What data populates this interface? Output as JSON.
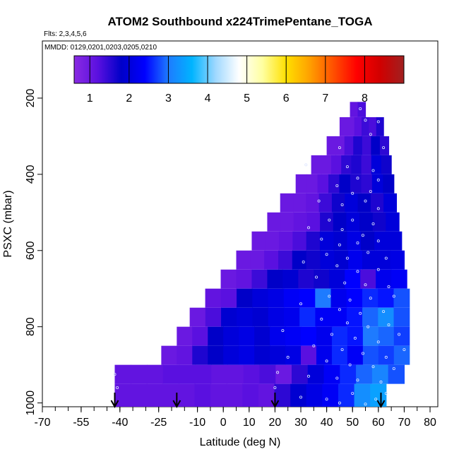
{
  "chart_data": {
    "type": "heatmap",
    "title": "ATOM2 Southbound x224TrimePentane_TOGA",
    "flights_label": "Flts: 2,3,4,5,6",
    "dates_label": "MMDD: 0129,0201,0203,0205,0210",
    "xlabel": "Latitude (deg N)",
    "ylabel": "PSXC (mbar)",
    "xlim": [
      -70,
      83
    ],
    "ylim": [
      1010,
      50
    ],
    "y_inverted": true,
    "x_ticks": [
      "-70",
      "-55",
      "-40",
      "-25",
      "-10",
      "0",
      "10",
      "20",
      "30",
      "40",
      "50",
      "60",
      "70",
      "80"
    ],
    "x_tick_values": [
      -70,
      -55,
      -40,
      -25,
      -10,
      0,
      10,
      20,
      30,
      40,
      50,
      60,
      70,
      80
    ],
    "x_minor_step": 5,
    "y_ticks": [
      "200",
      "400",
      "600",
      "800",
      "1000"
    ],
    "y_tick_values": [
      200,
      400,
      600,
      800,
      1000
    ],
    "colorbar": {
      "min": 0.6,
      "max": 9.0,
      "tick_labels": [
        "1",
        "2",
        "3",
        "4",
        "5",
        "6",
        "7",
        "8"
      ],
      "tick_values": [
        1,
        2,
        3,
        4,
        5,
        6,
        7,
        8
      ],
      "colors": [
        "#8a2be2",
        "#5a10e0",
        "#0000c8",
        "#0000ff",
        "#1e7bff",
        "#00b4ff",
        "#9fd8ff",
        "#ffffff",
        "#ffffa0",
        "#ffe000",
        "#ffa000",
        "#ff5000",
        "#ff0000",
        "#d00000",
        "#a02020"
      ]
    },
    "arrows_lat": [
      -42,
      -18,
      20,
      61
    ],
    "rows": [
      {
        "p_top": 210,
        "p_bot": 250,
        "lat_start": 49,
        "lat_end": 55,
        "values": [
          1.1,
          1.3
        ]
      },
      {
        "p_top": 250,
        "p_bot": 300,
        "lat_start": 45,
        "lat_end": 62,
        "values": [
          1.0,
          1.0,
          1.2,
          1.4,
          1.3,
          1.6
        ]
      },
      {
        "p_top": 300,
        "p_bot": 350,
        "lat_start": 40,
        "lat_end": 64,
        "values": [
          1.0,
          1.0,
          1.3,
          1.6,
          1.4,
          1.8,
          1.5
        ]
      },
      {
        "p_top": 350,
        "p_bot": 400,
        "lat_start": 34,
        "lat_end": 65,
        "values": [
          1.0,
          1.0,
          1.2,
          1.5,
          1.6,
          1.4,
          2.0,
          1.7
        ]
      },
      {
        "p_top": 400,
        "p_bot": 450,
        "lat_start": 28,
        "lat_end": 66,
        "values": [
          1.0,
          1.0,
          1.2,
          1.5,
          1.8,
          1.6,
          1.5,
          2.0,
          1.8
        ]
      },
      {
        "p_top": 450,
        "p_bot": 500,
        "lat_start": 22,
        "lat_end": 67,
        "values": [
          1.0,
          1.0,
          1.1,
          1.4,
          1.7,
          2.0,
          1.8,
          1.6,
          2.0
        ]
      },
      {
        "p_top": 500,
        "p_bot": 550,
        "lat_start": 17,
        "lat_end": 68,
        "values": [
          1.0,
          1.0,
          1.1,
          1.2,
          1.6,
          1.8,
          2.0,
          1.8,
          1.7,
          2.0
        ]
      },
      {
        "p_top": 550,
        "p_bot": 600,
        "lat_start": 11,
        "lat_end": 69,
        "values": [
          1.0,
          1.0,
          1.1,
          1.3,
          1.6,
          2.0,
          1.9,
          2.1,
          1.8,
          2.0,
          2.0
        ]
      },
      {
        "p_top": 600,
        "p_bot": 650,
        "lat_start": 5,
        "lat_end": 70,
        "values": [
          1.0,
          1.0,
          1.2,
          1.4,
          1.8,
          1.7,
          2.0,
          1.9,
          2.2,
          2.0,
          2.0,
          2.1
        ]
      },
      {
        "p_top": 650,
        "p_bot": 700,
        "lat_start": -1,
        "lat_end": 71,
        "values": [
          1.0,
          1.1,
          1.4,
          1.8,
          1.9,
          1.6,
          1.7,
          2.0,
          2.4,
          1.3,
          2.2,
          2.3
        ]
      },
      {
        "p_top": 700,
        "p_bot": 750,
        "lat_start": -7,
        "lat_end": 72,
        "values": [
          1.1,
          1.2,
          1.8,
          2.0,
          2.1,
          2.3,
          2.4,
          3.0,
          2.2,
          2.4,
          2.6,
          2.5,
          2.8
        ]
      },
      {
        "p_top": 750,
        "p_bot": 800,
        "lat_start": -13,
        "lat_end": 72,
        "values": [
          1.0,
          1.3,
          1.9,
          2.0,
          1.9,
          2.1,
          2.2,
          2.6,
          2.3,
          2.3,
          2.5,
          2.9,
          3.2,
          2.8
        ]
      },
      {
        "p_top": 800,
        "p_bot": 850,
        "lat_start": -18,
        "lat_end": 72,
        "values": [
          1.0,
          1.2,
          1.8,
          2.0,
          2.1,
          1.9,
          2.2,
          2.3,
          2.4,
          2.2,
          2.6,
          2.5,
          3.0,
          2.9,
          2.7
        ]
      },
      {
        "p_top": 850,
        "p_bot": 900,
        "lat_start": -24,
        "lat_end": 72,
        "values": [
          1.0,
          1.1,
          1.6,
          1.8,
          2.0,
          2.1,
          1.9,
          2.0,
          2.1,
          1.2,
          2.2,
          2.6,
          2.3,
          2.8,
          2.7,
          2.9
        ]
      },
      {
        "p_top": 900,
        "p_bot": 950,
        "lat_start": -42,
        "lat_end": 70,
        "values": [
          1.1,
          1.1,
          1.1,
          1.2,
          1.2,
          1.2,
          1.1,
          1.1,
          1.2,
          1.3,
          1.0,
          1.5,
          2.0,
          2.3,
          2.6,
          2.9,
          3.1,
          2.8
        ]
      },
      {
        "p_top": 950,
        "p_bot": 1010,
        "lat_start": -42,
        "lat_end": 63,
        "values": [
          1.1,
          1.1,
          1.1,
          1.1,
          1.1,
          1.2,
          1.1,
          1.1,
          1.2,
          1.1,
          1.5,
          1.9,
          2.1,
          2.3,
          2.6,
          3.2,
          3.4
        ]
      }
    ],
    "points": [
      [
        53,
        228
      ],
      [
        55,
        258
      ],
      [
        60,
        262
      ],
      [
        57,
        295
      ],
      [
        62,
        330
      ],
      [
        45,
        330
      ],
      [
        48,
        380
      ],
      [
        58,
        390
      ],
      [
        32,
        375
      ],
      [
        52,
        410
      ],
      [
        60,
        415
      ],
      [
        44,
        430
      ],
      [
        50,
        450
      ],
      [
        57,
        445
      ],
      [
        37,
        470
      ],
      [
        46,
        480
      ],
      [
        55,
        470
      ],
      [
        60,
        490
      ],
      [
        41,
        520
      ],
      [
        50,
        520
      ],
      [
        58,
        530
      ],
      [
        33,
        540
      ],
      [
        46,
        545
      ],
      [
        54,
        560
      ],
      [
        38,
        570
      ],
      [
        45,
        585
      ],
      [
        52,
        580
      ],
      [
        60,
        575
      ],
      [
        40,
        610
      ],
      [
        48,
        620
      ],
      [
        56,
        605
      ],
      [
        63,
        620
      ],
      [
        31,
        630
      ],
      [
        44,
        640
      ],
      [
        52,
        655
      ],
      [
        60,
        650
      ],
      [
        36,
        670
      ],
      [
        47,
        685
      ],
      [
        55,
        690
      ],
      [
        64,
        695
      ],
      [
        41,
        720
      ],
      [
        49,
        730
      ],
      [
        57,
        725
      ],
      [
        66,
        720
      ],
      [
        30,
        740
      ],
      [
        45,
        755
      ],
      [
        53,
        765
      ],
      [
        62,
        760
      ],
      [
        38,
        780
      ],
      [
        48,
        790
      ],
      [
        56,
        800
      ],
      [
        64,
        795
      ],
      [
        23,
        810
      ],
      [
        42,
        820
      ],
      [
        51,
        830
      ],
      [
        60,
        840
      ],
      [
        68,
        820
      ],
      [
        35,
        850
      ],
      [
        46,
        860
      ],
      [
        54,
        870
      ],
      [
        63,
        880
      ],
      [
        70,
        860
      ],
      [
        25,
        880
      ],
      [
        40,
        890
      ],
      [
        49,
        900
      ],
      [
        58,
        905
      ],
      [
        66,
        910
      ],
      [
        21,
        920
      ],
      [
        33,
        930
      ],
      [
        44,
        935
      ],
      [
        52,
        940
      ],
      [
        61,
        945
      ],
      [
        -42,
        925
      ],
      [
        -41,
        960
      ],
      [
        20,
        960
      ],
      [
        30,
        985
      ],
      [
        40,
        990
      ],
      [
        50,
        975
      ],
      [
        59,
        990
      ],
      [
        63,
        975
      ],
      [
        45,
        1000
      ],
      [
        55,
        1003
      ]
    ]
  }
}
